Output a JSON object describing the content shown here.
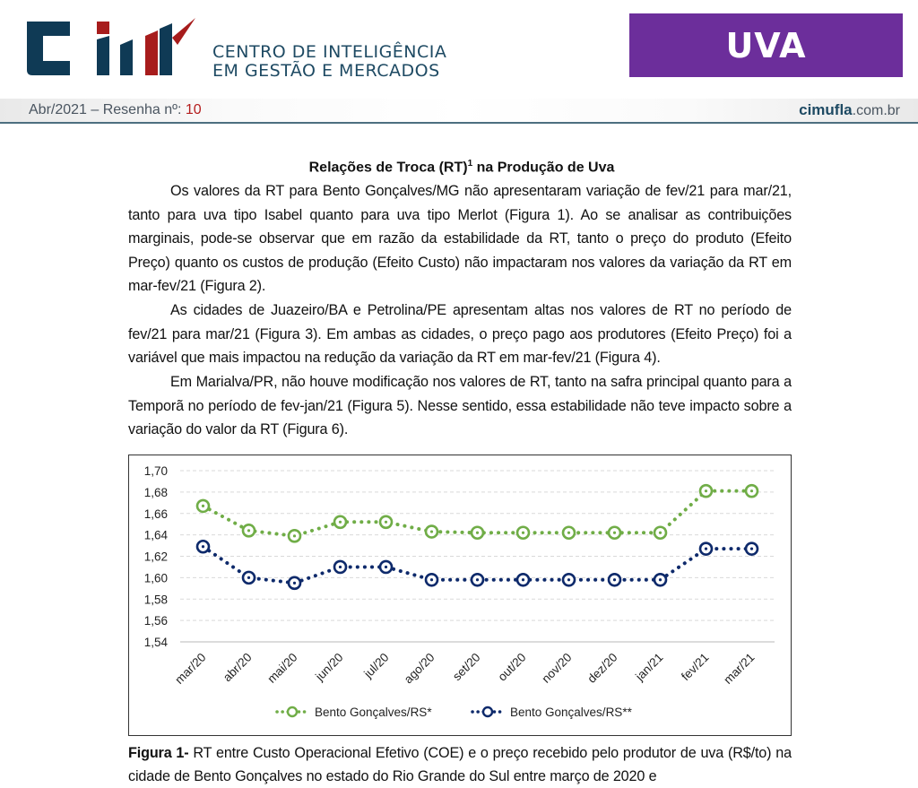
{
  "header": {
    "logo_text": "CIM",
    "brand_line1": "CENTRO DE INTELIGÊNCIA",
    "brand_line2": "EM GESTÃO E MERCADOS",
    "product_badge": "UVA",
    "issue_prefix": "Abr/2021 – Resenha nº: ",
    "issue_number": "10",
    "site_bold": "cimufla",
    "site_rest": ".com.br"
  },
  "colors": {
    "brand_blue": "#1e4a63",
    "brand_red": "#a71c1c",
    "badge_purple": "#6c2e9b",
    "series_green": "#70ad47",
    "series_navy": "#0e2a6b"
  },
  "article": {
    "title_pre": "Relações de Troca (RT)",
    "title_sup": "1",
    "title_post": " na Produção de Uva",
    "paragraphs": [
      "Os valores da RT para Bento Gonçalves/MG não apresentaram variação de fev/21 para mar/21, tanto para uva tipo Isabel quanto para uva tipo Merlot (Figura 1). Ao se analisar as contribuições marginais, pode-se observar que em razão da estabilidade da RT, tanto o preço do produto (Efeito Preço) quanto os custos de produção (Efeito Custo) não impactaram nos valores da variação da RT em mar-fev/21 (Figura 2).",
      "As cidades de Juazeiro/BA e Petrolina/PE apresentam altas nos valores de RT no período de fev/21 para mar/21 (Figura 3). Em ambas as cidades, o preço pago aos produtores (Efeito Preço) foi a variável que mais impactou na redução da variação da RT em mar-fev/21 (Figura 4).",
      "Em Marialva/PR, não houve modificação nos valores de RT, tanto na safra principal quanto para a Temporã no período de fev-jan/21 (Figura 5). Nesse sentido, essa estabilidade não teve impacto sobre a variação do valor da RT (Figura 6)."
    ],
    "caption_bold": "Figura 1-",
    "caption_text": " RT entre Custo Operacional Efetivo (COE) e o preço recebido pelo produtor de uva (R$/to) na cidade de Bento Gonçalves no estado do Rio Grande do Sul entre março de 2020 e"
  },
  "chart_data": {
    "type": "line",
    "title": "",
    "xlabel": "",
    "ylabel": "",
    "categories": [
      "mar/20",
      "abr/20",
      "mai/20",
      "jun/20",
      "jul/20",
      "ago/20",
      "set/20",
      "out/20",
      "nov/20",
      "dez/20",
      "jan/21",
      "fev/21",
      "mar/21"
    ],
    "yticks": [
      "1,54",
      "1,56",
      "1,58",
      "1,60",
      "1,62",
      "1,64",
      "1,66",
      "1,68",
      "1,70"
    ],
    "ylim": [
      1.54,
      1.7
    ],
    "grid": true,
    "legend_position": "bottom",
    "series": [
      {
        "name": "Bento Gonçalves/RS*",
        "color": "#70ad47",
        "values": [
          1.667,
          1.644,
          1.639,
          1.652,
          1.652,
          1.643,
          1.642,
          1.642,
          1.642,
          1.642,
          1.642,
          1.681,
          1.681
        ]
      },
      {
        "name": "Bento Gonçalves/RS**",
        "color": "#0e2a6b",
        "values": [
          1.629,
          1.6,
          1.595,
          1.61,
          1.61,
          1.598,
          1.598,
          1.598,
          1.598,
          1.598,
          1.598,
          1.627,
          1.627
        ]
      }
    ]
  }
}
